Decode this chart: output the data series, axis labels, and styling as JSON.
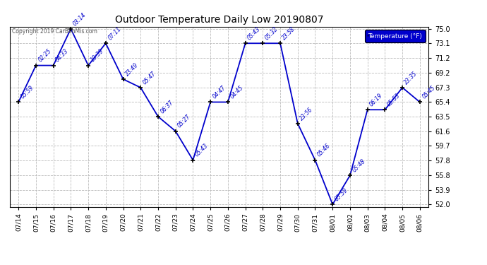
{
  "title": "Outdoor Temperature Daily Low 20190807",
  "copyright": "Copyright 2019 CarBenMis.com",
  "legend_label": "Temperature (°F)",
  "dates": [
    "07/14",
    "07/15",
    "07/16",
    "07/17",
    "07/18",
    "07/19",
    "07/20",
    "07/21",
    "07/22",
    "07/23",
    "07/24",
    "07/25",
    "07/26",
    "07/27",
    "07/28",
    "07/29",
    "07/30",
    "07/31",
    "08/01",
    "08/02",
    "08/03",
    "08/04",
    "08/05",
    "08/06"
  ],
  "values": [
    65.4,
    70.2,
    70.2,
    75.0,
    70.2,
    73.1,
    68.4,
    67.3,
    63.5,
    61.6,
    57.8,
    65.4,
    65.4,
    73.1,
    73.1,
    73.1,
    62.6,
    57.8,
    52.0,
    55.8,
    64.4,
    64.4,
    67.3,
    65.4
  ],
  "time_labels": [
    "05:59",
    "02:25",
    "04:33",
    "03:14",
    "10:39",
    "07:11",
    "23:49",
    "05:47",
    "06:37",
    "05:27",
    "05:43",
    "04:47",
    "04:45",
    "05:43",
    "05:32",
    "23:58",
    "23:56",
    "05:46",
    "05:59",
    "05:48",
    "06:19",
    "05:53",
    "23:35",
    "05:45"
  ],
  "ylim": [
    52.0,
    75.0
  ],
  "yticks": [
    52.0,
    53.9,
    55.8,
    57.8,
    59.7,
    61.6,
    63.5,
    65.4,
    67.3,
    69.2,
    71.2,
    73.1,
    75.0
  ],
  "line_color": "#0000cc",
  "marker_color": "#000000",
  "bg_color": "#ffffff",
  "grid_color": "#bbbbbb",
  "title_color": "#000000",
  "label_color": "#0000cc",
  "legend_bg": "#0000cc",
  "legend_fg": "#ffffff"
}
